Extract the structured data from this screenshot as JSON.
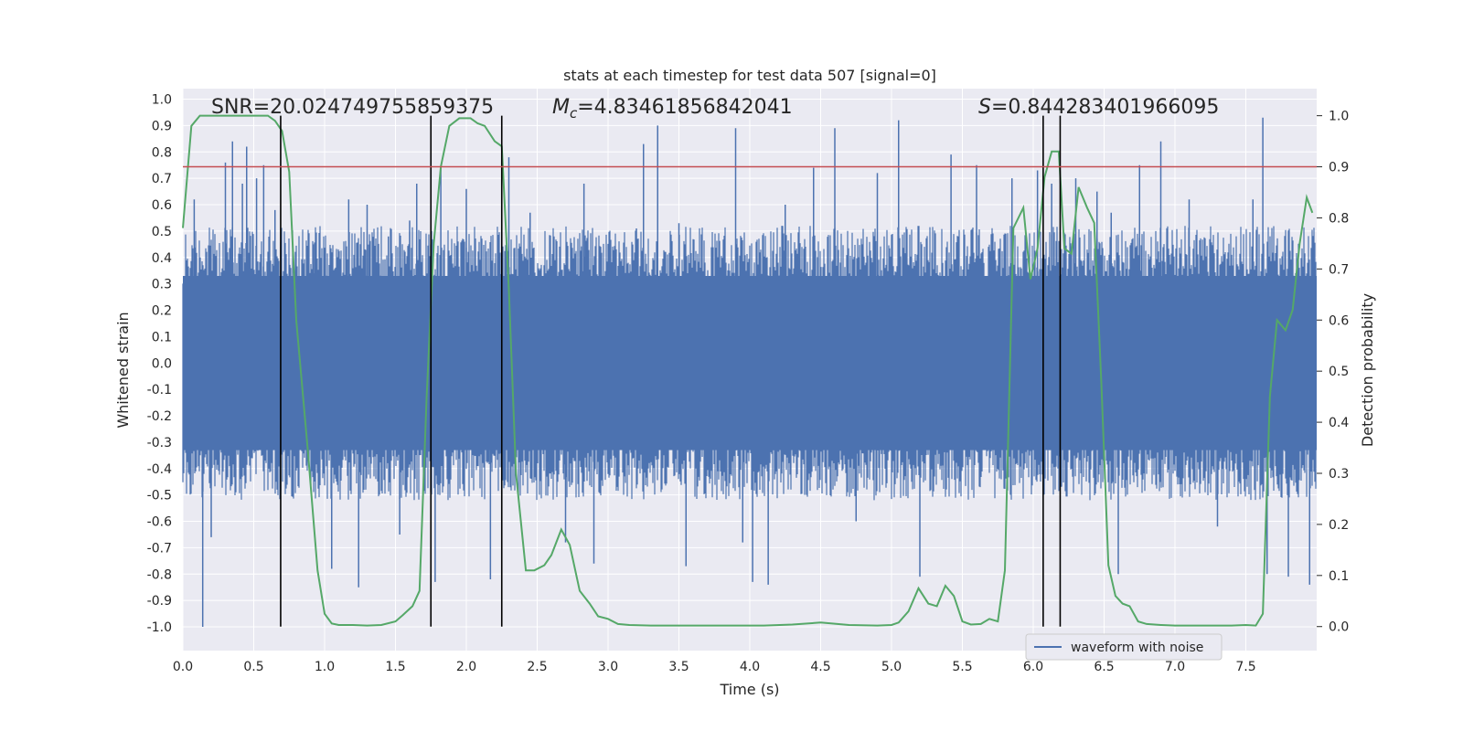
{
  "chart_data": {
    "type": "line",
    "title": "stats at each timestep for test data 507 [signal=0]",
    "xlabel": "Time (s)",
    "ylabel": "Whitened strain",
    "y2label": "Detection probability",
    "xlim": [
      0.0,
      8.0
    ],
    "ylim": [
      -1.09,
      1.04
    ],
    "y2lim": [
      -0.047,
      1.053
    ],
    "xticks": [
      "0.0",
      "0.5",
      "1.0",
      "1.5",
      "2.0",
      "2.5",
      "3.0",
      "3.5",
      "4.0",
      "4.5",
      "5.0",
      "5.5",
      "6.0",
      "6.5",
      "7.0",
      "7.5"
    ],
    "yticks": [
      "1.0",
      "0.9",
      "0.8",
      "0.7",
      "0.6",
      "0.5",
      "0.4",
      "0.3",
      "0.2",
      "0.1",
      "0.0",
      "-0.1",
      "-0.2",
      "-0.3",
      "-0.4",
      "-0.5",
      "-0.6",
      "-0.7",
      "-0.8",
      "-0.9",
      "-1.0"
    ],
    "y2ticks": [
      "1.0",
      "0.9",
      "0.8",
      "0.7",
      "0.6",
      "0.5",
      "0.4",
      "0.3",
      "0.2",
      "0.1",
      "0.0"
    ],
    "grid": true,
    "legend": {
      "placement": "lower-right",
      "entries": [
        "waveform with noise"
      ]
    },
    "colors": {
      "background": "#eaeaf2",
      "grid": "#ffffff",
      "waveform": "#4c72b0",
      "probability": "#55a868",
      "threshold": "#c44e52",
      "markers": "#000000"
    },
    "annotations": {
      "snr": "SNR=20.024749755859375",
      "mc_symbol": "M",
      "mc_sub": "c",
      "mc_value": "=4.83461856842041",
      "s_symbol": "S",
      "s_value": "=0.844283401966095"
    },
    "threshold_probability": 0.9,
    "event_markers_time": [
      0.69,
      1.75,
      2.25,
      6.07,
      6.19
    ],
    "waveform": {
      "name": "waveform with noise",
      "spikes": [
        [
          0.08,
          0.62
        ],
        [
          0.14,
          -1.0
        ],
        [
          0.2,
          -0.66
        ],
        [
          0.3,
          0.76
        ],
        [
          0.35,
          0.84
        ],
        [
          0.42,
          0.68
        ],
        [
          0.45,
          0.82
        ],
        [
          0.52,
          0.7
        ],
        [
          0.57,
          0.75
        ],
        [
          0.65,
          0.58
        ],
        [
          0.92,
          0.45
        ],
        [
          1.05,
          -0.78
        ],
        [
          1.17,
          0.62
        ],
        [
          1.24,
          -0.85
        ],
        [
          1.3,
          0.6
        ],
        [
          1.45,
          0.48
        ],
        [
          1.53,
          -0.65
        ],
        [
          1.6,
          0.54
        ],
        [
          1.65,
          0.68
        ],
        [
          1.78,
          -0.83
        ],
        [
          1.82,
          0.74
        ],
        [
          2.0,
          0.66
        ],
        [
          2.17,
          -0.82
        ],
        [
          2.3,
          0.78
        ],
        [
          2.45,
          0.57
        ],
        [
          2.7,
          -0.68
        ],
        [
          2.83,
          0.68
        ],
        [
          2.9,
          -0.76
        ],
        [
          3.2,
          0.51
        ],
        [
          3.25,
          0.83
        ],
        [
          3.35,
          0.9
        ],
        [
          3.5,
          0.53
        ],
        [
          3.55,
          -0.77
        ],
        [
          3.9,
          0.89
        ],
        [
          3.95,
          -0.68
        ],
        [
          4.02,
          -0.83
        ],
        [
          4.13,
          -0.84
        ],
        [
          4.25,
          0.6
        ],
        [
          4.3,
          -0.26
        ],
        [
          4.45,
          0.74
        ],
        [
          4.6,
          0.89
        ],
        [
          4.75,
          -0.6
        ],
        [
          4.9,
          0.72
        ],
        [
          5.05,
          0.92
        ],
        [
          5.2,
          -0.81
        ],
        [
          5.42,
          0.79
        ],
        [
          5.6,
          0.75
        ],
        [
          5.85,
          0.7
        ],
        [
          6.03,
          0.73
        ],
        [
          6.13,
          0.68
        ],
        [
          6.3,
          0.7
        ],
        [
          6.45,
          0.65
        ],
        [
          6.55,
          0.57
        ],
        [
          6.6,
          -0.8
        ],
        [
          6.75,
          0.75
        ],
        [
          6.9,
          0.84
        ],
        [
          7.1,
          0.62
        ],
        [
          7.3,
          -0.62
        ],
        [
          7.55,
          0.62
        ],
        [
          7.62,
          0.93
        ],
        [
          7.65,
          -0.8
        ],
        [
          7.8,
          -0.81
        ],
        [
          7.95,
          -0.84
        ]
      ]
    },
    "probability": {
      "x": [
        0.0,
        0.06,
        0.12,
        0.2,
        0.3,
        0.4,
        0.5,
        0.6,
        0.65,
        0.7,
        0.75,
        0.8,
        0.88,
        0.95,
        1.0,
        1.05,
        1.1,
        1.2,
        1.3,
        1.4,
        1.5,
        1.55,
        1.62,
        1.67,
        1.72,
        1.77,
        1.82,
        1.88,
        1.95,
        2.03,
        2.08,
        2.13,
        2.2,
        2.25,
        2.3,
        2.35,
        2.42,
        2.48,
        2.55,
        2.6,
        2.67,
        2.73,
        2.8,
        2.87,
        2.93,
        3.0,
        3.07,
        3.15,
        3.3,
        3.5,
        3.7,
        3.9,
        4.1,
        4.3,
        4.5,
        4.7,
        4.9,
        5.0,
        5.05,
        5.12,
        5.19,
        5.26,
        5.32,
        5.38,
        5.44,
        5.5,
        5.56,
        5.63,
        5.69,
        5.75,
        5.8,
        5.86,
        5.93,
        5.98,
        6.03,
        6.08,
        6.13,
        6.18,
        6.22,
        6.27,
        6.32,
        6.38,
        6.43,
        6.48,
        6.53,
        6.58,
        6.63,
        6.68,
        6.74,
        6.8,
        6.9,
        7.0,
        7.2,
        7.4,
        7.5,
        7.57,
        7.62,
        7.67,
        7.72,
        7.78,
        7.83,
        7.88,
        7.93,
        7.97
      ],
      "y": [
        0.78,
        0.98,
        1.0,
        1.0,
        1.0,
        1.0,
        1.0,
        1.0,
        0.99,
        0.97,
        0.89,
        0.6,
        0.35,
        0.11,
        0.025,
        0.006,
        0.003,
        0.003,
        0.002,
        0.003,
        0.01,
        0.022,
        0.04,
        0.07,
        0.45,
        0.75,
        0.9,
        0.98,
        0.995,
        0.995,
        0.985,
        0.98,
        0.95,
        0.94,
        0.66,
        0.3,
        0.11,
        0.11,
        0.12,
        0.14,
        0.19,
        0.16,
        0.07,
        0.045,
        0.02,
        0.015,
        0.005,
        0.003,
        0.002,
        0.002,
        0.002,
        0.002,
        0.002,
        0.004,
        0.008,
        0.003,
        0.002,
        0.003,
        0.008,
        0.03,
        0.075,
        0.045,
        0.04,
        0.08,
        0.06,
        0.01,
        0.004,
        0.005,
        0.015,
        0.01,
        0.11,
        0.78,
        0.82,
        0.68,
        0.74,
        0.88,
        0.93,
        0.93,
        0.74,
        0.73,
        0.86,
        0.82,
        0.79,
        0.48,
        0.12,
        0.06,
        0.045,
        0.04,
        0.01,
        0.005,
        0.003,
        0.002,
        0.002,
        0.002,
        0.003,
        0.002,
        0.025,
        0.45,
        0.6,
        0.58,
        0.62,
        0.75,
        0.84,
        0.81
      ]
    }
  }
}
